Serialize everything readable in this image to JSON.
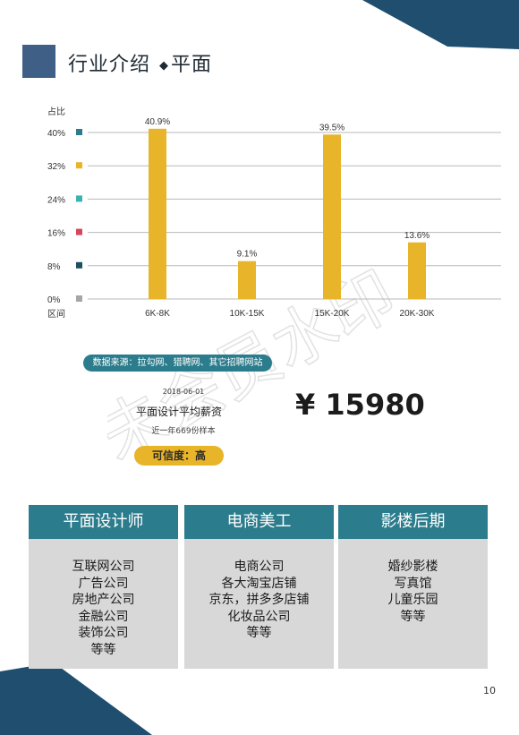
{
  "header": {
    "title": "行业介绍",
    "bullet": "◆",
    "subtitle": "平面"
  },
  "watermark": {
    "text": "未会员水印"
  },
  "chart_data": {
    "type": "bar",
    "ylabel": "占比",
    "xlabel": "区间",
    "categories": [
      "6K-8K",
      "10K-15K",
      "15K-20K",
      "20K-30K"
    ],
    "values": [
      40.9,
      9.1,
      39.5,
      13.6
    ],
    "value_labels": [
      "40.9%",
      "9.1%",
      "39.5%",
      "13.6%"
    ],
    "yticks": [
      0,
      8,
      16,
      24,
      32,
      40
    ],
    "ytick_labels": [
      "0%",
      "8%",
      "16%",
      "24%",
      "32%",
      "40%"
    ],
    "tick_marker_colors": [
      "#a6a6a6",
      "#1f4e5f",
      "#d6455b",
      "#3ab3b0",
      "#e8b42a",
      "#2b7c8c"
    ],
    "ylim": [
      0,
      42
    ],
    "bar_color": "#e8b42a",
    "grid": true
  },
  "source": {
    "text": "数据来源：拉勾网、猎聘网、其它招聘网站"
  },
  "salary": {
    "date": "2018-06-01",
    "label": "平面设计平均薪资",
    "sample": "近一年669份样本",
    "value": "¥ 15980",
    "confidence": "可信度：高"
  },
  "cards": [
    {
      "title": "平面设计师",
      "items": [
        "互联网公司",
        "广告公司",
        "房地产公司",
        "金融公司",
        "装饰公司",
        "等等"
      ]
    },
    {
      "title": "电商美工",
      "items": [
        "电商公司",
        "各大淘宝店铺",
        "京东，拼多多店铺",
        "化妆品公司",
        "等等"
      ]
    },
    {
      "title": "影楼后期",
      "items": [
        "婚纱影楼",
        "写真馆",
        "儿童乐园",
        "等等"
      ]
    }
  ],
  "page": {
    "number": "10"
  },
  "colors": {
    "navy": "#1f4e6e",
    "teal": "#2b7c8c",
    "gold": "#e8b42a",
    "gray": "#d8d8d8",
    "title_block": "#3f5f87"
  }
}
